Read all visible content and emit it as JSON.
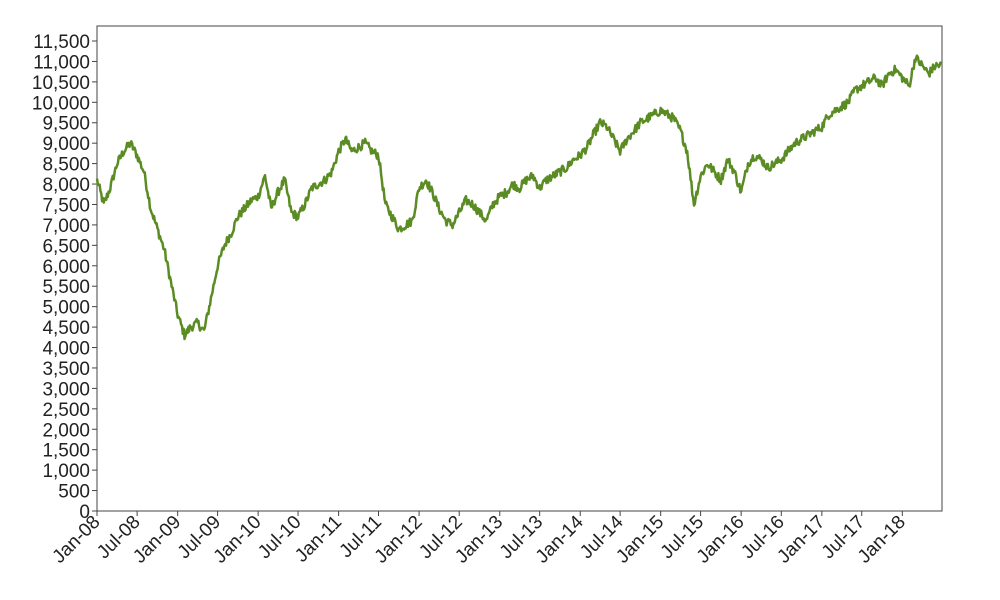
{
  "chart_data": {
    "type": "line",
    "title": "",
    "xlabel": "",
    "ylabel": "",
    "ylim": [
      0,
      11500
    ],
    "grid": false,
    "legend": "none",
    "x_tick_labels": [
      "Jan-08",
      "Jul-08",
      "Jan-09",
      "Jul-09",
      "Jan-10",
      "Jul-10",
      "Jan-11",
      "Jul-11",
      "Jan-12",
      "Jul-12",
      "Jan-13",
      "Jul-13",
      "Jan-14",
      "Jul-14",
      "Jan-15",
      "Jul-15",
      "Jan-16",
      "Jul-16",
      "Jan-17",
      "Jul-17",
      "Jan-18"
    ],
    "y_tick_labels": [
      "0",
      "500",
      "1,000",
      "1,500",
      "2,000",
      "2,500",
      "3,000",
      "3,500",
      "4,000",
      "4,500",
      "5,000",
      "5,500",
      "6,000",
      "6,500",
      "7,000",
      "7,500",
      "8,000",
      "8,500",
      "9,000",
      "9,500",
      "10,000",
      "10,500",
      "11,000",
      "11,500"
    ],
    "series": [
      {
        "color": "#5b8c24",
        "x": [
          "2008-01-01",
          "2008-02-01",
          "2008-03-01",
          "2008-04-01",
          "2008-05-01",
          "2008-06-01",
          "2008-07-01",
          "2008-08-01",
          "2008-09-01",
          "2008-10-01",
          "2008-11-01",
          "2008-12-01",
          "2009-01-01",
          "2009-02-01",
          "2009-03-01",
          "2009-04-01",
          "2009-05-01",
          "2009-06-01",
          "2009-07-01",
          "2009-08-01",
          "2009-09-01",
          "2009-10-01",
          "2009-11-01",
          "2009-12-01",
          "2010-01-01",
          "2010-02-01",
          "2010-03-01",
          "2010-04-01",
          "2010-05-01",
          "2010-06-01",
          "2010-07-01",
          "2010-08-01",
          "2010-09-01",
          "2010-10-01",
          "2010-11-01",
          "2010-12-01",
          "2011-01-01",
          "2011-02-01",
          "2011-03-01",
          "2011-04-01",
          "2011-05-01",
          "2011-06-01",
          "2011-07-01",
          "2011-08-01",
          "2011-09-01",
          "2011-10-01",
          "2011-11-01",
          "2011-12-01",
          "2012-01-01",
          "2012-02-01",
          "2012-03-01",
          "2012-04-01",
          "2012-05-01",
          "2012-06-01",
          "2012-07-01",
          "2012-08-01",
          "2012-09-01",
          "2012-10-01",
          "2012-11-01",
          "2012-12-01",
          "2013-01-01",
          "2013-02-01",
          "2013-03-01",
          "2013-04-01",
          "2013-05-01",
          "2013-06-01",
          "2013-07-01",
          "2013-08-01",
          "2013-09-01",
          "2013-10-01",
          "2013-11-01",
          "2013-12-01",
          "2014-01-01",
          "2014-02-01",
          "2014-03-01",
          "2014-04-01",
          "2014-05-01",
          "2014-06-01",
          "2014-07-01",
          "2014-08-01",
          "2014-09-01",
          "2014-10-01",
          "2014-11-01",
          "2014-12-01",
          "2015-01-01",
          "2015-02-01",
          "2015-03-01",
          "2015-04-01",
          "2015-05-01",
          "2015-06-01",
          "2015-07-01",
          "2015-08-01",
          "2015-09-01",
          "2015-10-01",
          "2015-11-01",
          "2015-12-01",
          "2016-01-01",
          "2016-02-01",
          "2016-03-01",
          "2016-04-01",
          "2016-05-01",
          "2016-06-01",
          "2016-07-01",
          "2016-08-01",
          "2016-09-01",
          "2016-10-01",
          "2016-11-01",
          "2016-12-01",
          "2017-01-01",
          "2017-02-01",
          "2017-03-01",
          "2017-04-01",
          "2017-05-01",
          "2017-06-01",
          "2017-07-01",
          "2017-08-01",
          "2017-09-01",
          "2017-10-01",
          "2017-11-01",
          "2017-12-01",
          "2018-01-01",
          "2018-02-01",
          "2018-03-01",
          "2018-04-01",
          "2018-05-01",
          "2018-06-01"
        ],
        "values": [
          8100,
          7500,
          7900,
          8500,
          8800,
          9000,
          8700,
          8300,
          7400,
          6900,
          6400,
          5600,
          4800,
          4300,
          4500,
          4600,
          4400,
          5200,
          6000,
          6500,
          6800,
          7200,
          7400,
          7600,
          7700,
          8200,
          7400,
          7800,
          8100,
          7300,
          7200,
          7500,
          7900,
          8000,
          8100,
          8300,
          8800,
          9100,
          8800,
          8900,
          9000,
          8800,
          8700,
          7500,
          7200,
          6900,
          7000,
          7100,
          7900,
          8100,
          7800,
          7400,
          7100,
          7000,
          7300,
          7600,
          7500,
          7300,
          7100,
          7500,
          7700,
          7800,
          8000,
          7900,
          8100,
          8200,
          7900,
          8100,
          8200,
          8300,
          8400,
          8600,
          8700,
          8900,
          9200,
          9500,
          9400,
          9100,
          8800,
          9100,
          9300,
          9500,
          9600,
          9700,
          9800,
          9700,
          9600,
          9300,
          8800,
          7500,
          8200,
          8500,
          8300,
          8100,
          8600,
          8300,
          7800,
          8500,
          8700,
          8600,
          8400,
          8500,
          8600,
          8800,
          9000,
          9100,
          9200,
          9300,
          9400,
          9700,
          9800,
          9900,
          10000,
          10300,
          10400,
          10500,
          10600,
          10400,
          10700,
          10800,
          10600,
          10400,
          11100,
          10900,
          10700,
          10900
        ]
      }
    ]
  }
}
